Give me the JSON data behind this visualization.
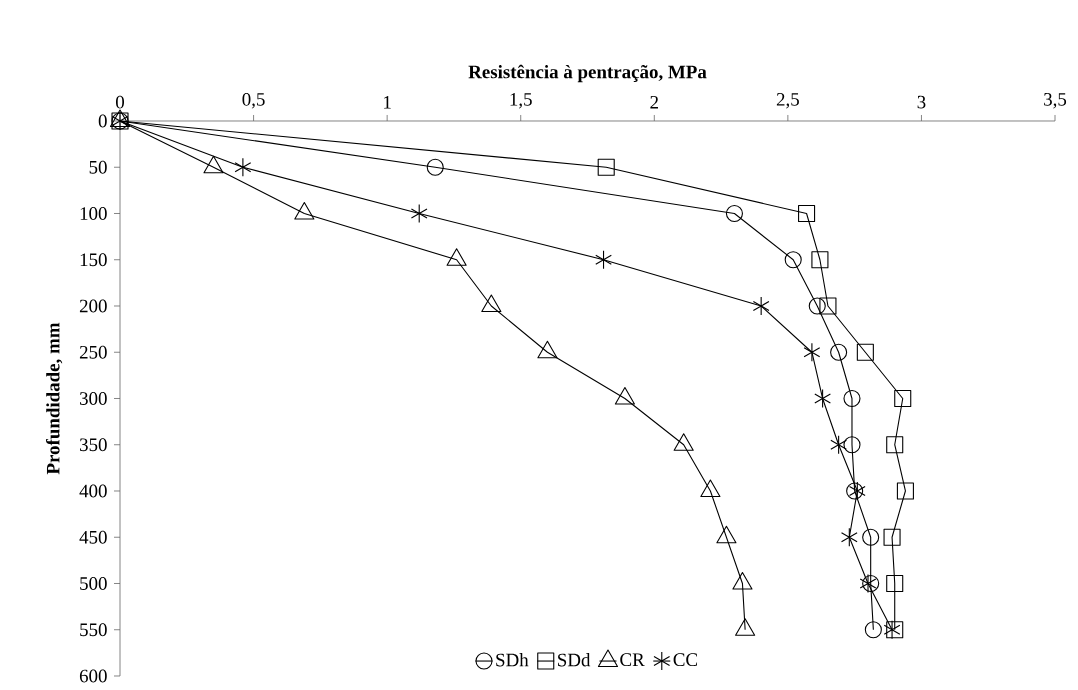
{
  "chart_data": {
    "type": "line",
    "xlabel": "Resistência à pentração, MPa",
    "ylabel": "Profundidade, mm",
    "xlim": [
      0,
      3.5
    ],
    "xticks": [
      0,
      {
        "value": 0.5,
        "label": "0,5"
      },
      1,
      {
        "value": 1.5,
        "label": "1,5"
      },
      2,
      {
        "value": 2.5,
        "label": "2,5"
      },
      3,
      {
        "value": 3.5,
        "label": "3,5"
      }
    ],
    "ylim": [
      600,
      0
    ],
    "yticks": [
      0,
      50,
      100,
      150,
      200,
      250,
      300,
      350,
      400,
      450,
      500,
      550,
      600
    ],
    "grid": false,
    "legend": "bottom",
    "line_style": "solid",
    "series": [
      {
        "name": "SDh",
        "color": "#000000",
        "marker": "circle",
        "x": [
          0,
          1.18,
          2.3,
          2.52,
          2.61,
          2.69,
          2.74,
          2.74,
          2.75,
          2.81,
          2.81,
          2.82
        ],
        "values": [
          0,
          50,
          100,
          150,
          200,
          250,
          300,
          350,
          400,
          450,
          500,
          550
        ]
      },
      {
        "name": "SDd",
        "color": "#000000",
        "marker": "square",
        "x": [
          0,
          1.82,
          2.57,
          2.62,
          2.65,
          2.79,
          2.93,
          2.9,
          2.94,
          2.89,
          2.9,
          2.9
        ],
        "values": [
          0,
          50,
          100,
          150,
          200,
          250,
          300,
          350,
          400,
          450,
          500,
          550
        ]
      },
      {
        "name": "CR",
        "color": "#000000",
        "marker": "triangle",
        "x": [
          0,
          0.35,
          0.69,
          1.26,
          1.39,
          1.6,
          1.89,
          2.11,
          2.21,
          2.27,
          2.33,
          2.34
        ],
        "values": [
          0,
          50,
          100,
          150,
          200,
          250,
          300,
          350,
          400,
          450,
          500,
          550
        ]
      },
      {
        "name": "CC",
        "color": "#000000",
        "marker": "cross",
        "x": [
          0,
          0.46,
          1.12,
          1.81,
          2.4,
          2.59,
          2.63,
          2.69,
          2.76,
          2.73,
          2.8,
          2.89
        ],
        "values": [
          0,
          50,
          100,
          150,
          200,
          250,
          300,
          350,
          400,
          450,
          500,
          550
        ]
      }
    ]
  }
}
